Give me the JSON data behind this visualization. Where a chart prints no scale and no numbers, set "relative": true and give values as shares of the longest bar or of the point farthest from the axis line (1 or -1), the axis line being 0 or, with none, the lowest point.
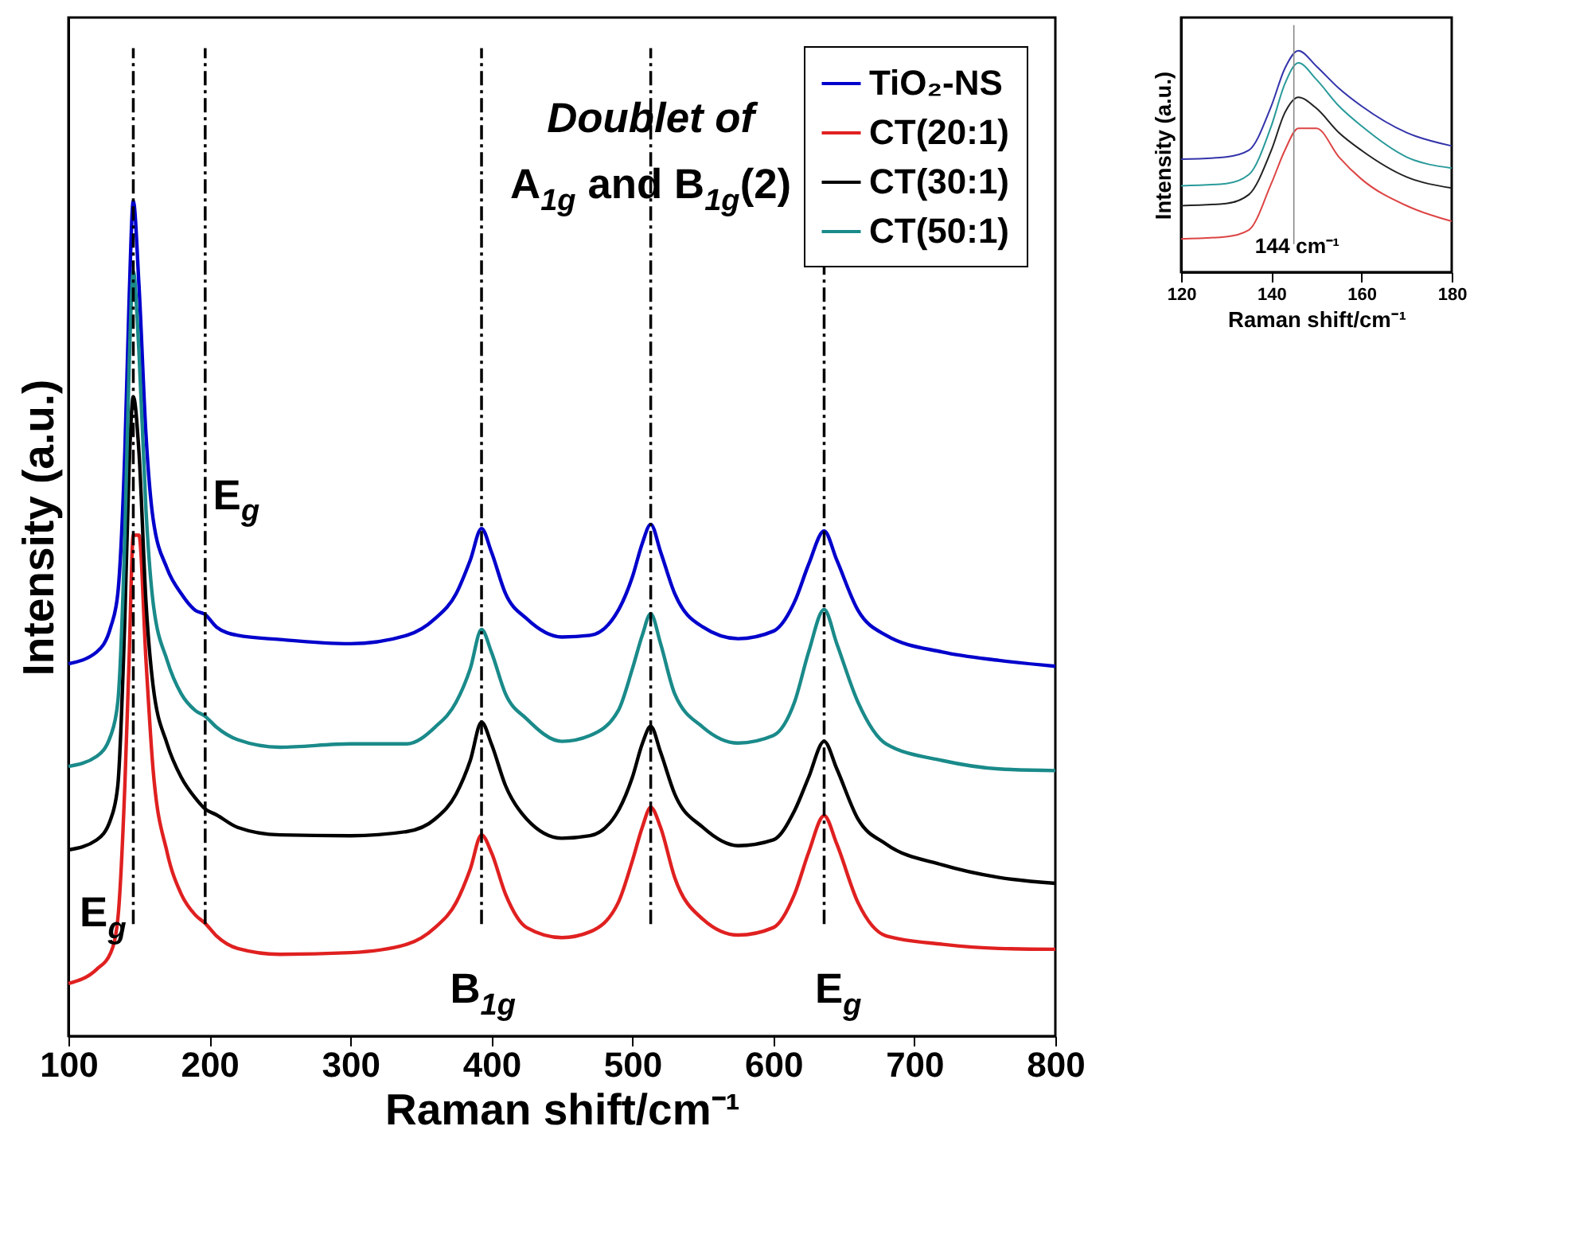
{
  "chart_data": [
    {
      "type": "line",
      "xlabel": "Raman shift/cm⁻¹",
      "ylabel": "Intensity (a.u.)",
      "relative": true,
      "xlim": [
        100,
        800
      ],
      "xticks": [
        100,
        200,
        300,
        400,
        500,
        600,
        700,
        800
      ],
      "legend": "top right",
      "line_style": "solid",
      "x": [
        100,
        120,
        130,
        135,
        140,
        143,
        146,
        150,
        155,
        160,
        170,
        180,
        190,
        197,
        205,
        220,
        250,
        300,
        340,
        360,
        375,
        385,
        393,
        400,
        410,
        425,
        450,
        470,
        490,
        500,
        507,
        513,
        520,
        530,
        550,
        575,
        600,
        615,
        625,
        636,
        645,
        660,
        680,
        720,
        760,
        800
      ],
      "series": [
        {
          "name": "TiO₂-NS",
          "color": "#0000cc",
          "values": [
            0.446,
            0.46,
            0.49,
            0.53,
            0.7,
            0.88,
            1.0,
            0.9,
            0.72,
            0.62,
            0.56,
            0.53,
            0.51,
            0.505,
            0.49,
            0.48,
            0.475,
            0.47,
            0.48,
            0.5,
            0.53,
            0.57,
            0.608,
            0.58,
            0.53,
            0.5,
            0.478,
            0.48,
            0.51,
            0.55,
            0.59,
            0.613,
            0.58,
            0.53,
            0.49,
            0.476,
            0.485,
            0.52,
            0.565,
            0.605,
            0.57,
            0.51,
            0.48,
            0.46,
            0.45,
            0.443
          ]
        },
        {
          "name": "CT(20:1)",
          "color": "#e02020",
          "values": [
            0.063,
            0.08,
            0.1,
            0.14,
            0.3,
            0.45,
            0.6,
            0.6,
            0.45,
            0.32,
            0.22,
            0.17,
            0.145,
            0.135,
            0.12,
            0.105,
            0.098,
            0.1,
            0.11,
            0.13,
            0.16,
            0.2,
            0.241,
            0.22,
            0.17,
            0.13,
            0.118,
            0.125,
            0.16,
            0.21,
            0.25,
            0.274,
            0.25,
            0.19,
            0.14,
            0.121,
            0.13,
            0.17,
            0.22,
            0.264,
            0.23,
            0.16,
            0.12,
            0.11,
            0.105,
            0.104
          ]
        },
        {
          "name": "CT(30:1)",
          "color": "#000000",
          "values": [
            0.223,
            0.235,
            0.26,
            0.3,
            0.5,
            0.68,
            0.766,
            0.7,
            0.52,
            0.42,
            0.35,
            0.31,
            0.285,
            0.272,
            0.265,
            0.25,
            0.241,
            0.24,
            0.245,
            0.26,
            0.29,
            0.33,
            0.376,
            0.35,
            0.3,
            0.26,
            0.237,
            0.24,
            0.27,
            0.31,
            0.35,
            0.371,
            0.34,
            0.29,
            0.25,
            0.228,
            0.235,
            0.27,
            0.31,
            0.353,
            0.32,
            0.26,
            0.23,
            0.205,
            0.19,
            0.183
          ]
        },
        {
          "name": "CT(50:1)",
          "color": "#1a8a8a",
          "values": [
            0.323,
            0.335,
            0.36,
            0.4,
            0.6,
            0.8,
            0.916,
            0.82,
            0.63,
            0.52,
            0.45,
            0.41,
            0.39,
            0.383,
            0.37,
            0.355,
            0.346,
            0.35,
            0.35,
            0.37,
            0.4,
            0.44,
            0.487,
            0.46,
            0.41,
            0.38,
            0.353,
            0.36,
            0.39,
            0.44,
            0.48,
            0.506,
            0.47,
            0.41,
            0.37,
            0.351,
            0.36,
            0.4,
            0.46,
            0.511,
            0.47,
            0.4,
            0.35,
            0.33,
            0.32,
            0.318
          ]
        }
      ],
      "ref_lines": [
        {
          "axis": "x",
          "value": 146,
          "color": "#000000",
          "line_style": "dashed"
        },
        {
          "axis": "x",
          "value": 197,
          "color": "#000000",
          "line_style": "dashed"
        },
        {
          "axis": "x",
          "value": 393,
          "color": "#000000",
          "line_style": "dashed"
        },
        {
          "axis": "x",
          "value": 513,
          "color": "#000000",
          "line_style": "dashed"
        },
        {
          "axis": "x",
          "value": 636,
          "color": "#000000",
          "line_style": "dashed"
        }
      ],
      "annotations": [
        "E$_{g}$",
        "E$_{g}$",
        "B$_{1g}$",
        "E$_{g}$",
        "Doublet of",
        "A$_{1g}$ and B$_{1g}$(2)"
      ]
    },
    {
      "type": "line",
      "xlabel": "Raman shift/cm⁻¹",
      "ylabel": "Intensity (a.u.)",
      "relative": true,
      "xlim": [
        120,
        180
      ],
      "xticks": [
        120,
        140,
        160,
        180
      ],
      "line_style": "solid",
      "x": [
        120,
        130,
        135,
        140,
        143,
        146,
        150,
        155,
        160,
        170,
        180
      ],
      "series": [
        {
          "color": "#3333aa",
          "values": [
            0.51,
            0.52,
            0.55,
            0.75,
            0.92,
            1.0,
            0.93,
            0.83,
            0.75,
            0.63,
            0.57
          ]
        },
        {
          "color": "#2a9a9a",
          "values": [
            0.39,
            0.4,
            0.44,
            0.66,
            0.85,
            0.945,
            0.87,
            0.75,
            0.66,
            0.52,
            0.47
          ]
        },
        {
          "color": "#222222",
          "values": [
            0.3,
            0.31,
            0.35,
            0.55,
            0.72,
            0.79,
            0.74,
            0.63,
            0.55,
            0.43,
            0.38
          ]
        },
        {
          "color": "#dd4444",
          "values": [
            0.15,
            0.16,
            0.19,
            0.4,
            0.55,
            0.65,
            0.65,
            0.52,
            0.42,
            0.3,
            0.23
          ]
        }
      ],
      "ref_lines": [
        {
          "axis": "x",
          "value": 145,
          "color": "#888888",
          "line_style": "solid"
        }
      ],
      "annotations": [
        "144 cm⁻¹"
      ]
    }
  ]
}
